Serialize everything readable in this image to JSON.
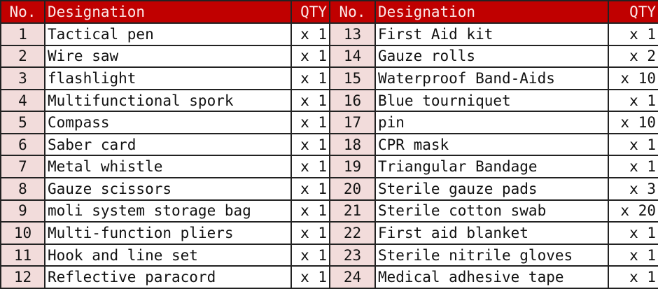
{
  "colors": {
    "header_bg": "#c00000",
    "number_bg": "#f2dcdb"
  },
  "headers": {
    "no": "No.",
    "designation": "Designation",
    "qty": "QTY"
  },
  "left": [
    {
      "no": "1",
      "name": "Tactical pen",
      "qty": "x 1"
    },
    {
      "no": "2",
      "name": "Wire saw",
      "qty": "x 1"
    },
    {
      "no": "3",
      "name": "flashlight",
      "qty": "x 1"
    },
    {
      "no": "4",
      "name": "Multifunctional spork",
      "qty": "x 1"
    },
    {
      "no": "5",
      "name": "Compass",
      "qty": "x 1"
    },
    {
      "no": "6",
      "name": "Saber card",
      "qty": "x 1"
    },
    {
      "no": "7",
      "name": "Metal whistle",
      "qty": "x 1"
    },
    {
      "no": "8",
      "name": "Gauze scissors",
      "qty": "x 1"
    },
    {
      "no": "9",
      "name": "moli system storage bag",
      "qty": "x 1"
    },
    {
      "no": "10",
      "name": "Multi-function pliers",
      "qty": "x 1"
    },
    {
      "no": "11",
      "name": "Hook and line set",
      "qty": "x 1"
    },
    {
      "no": "12",
      "name": "Reflective paracord",
      "qty": "x 1"
    }
  ],
  "right": [
    {
      "no": "13",
      "name": "First Aid kit",
      "qty": "x 1"
    },
    {
      "no": "14",
      "name": "Gauze rolls",
      "qty": "x 2"
    },
    {
      "no": "15",
      "name": "Waterproof Band-Aids",
      "qty": "x 10"
    },
    {
      "no": "16",
      "name": "Blue tourniquet",
      "qty": "x 1"
    },
    {
      "no": "17",
      "name": "pin",
      "qty": "x 10"
    },
    {
      "no": "18",
      "name": "CPR mask",
      "qty": "x 1"
    },
    {
      "no": "19",
      "name": "Triangular Bandage",
      "qty": "x 1"
    },
    {
      "no": "20",
      "name": "Sterile gauze pads",
      "qty": "x 3"
    },
    {
      "no": "21",
      "name": "Sterile cotton swab",
      "qty": "x 20"
    },
    {
      "no": "22",
      "name": "First aid blanket",
      "qty": "x 1"
    },
    {
      "no": "23",
      "name": "Sterile nitrile gloves",
      "qty": "x 1"
    },
    {
      "no": "24",
      "name": "Medical adhesive tape",
      "qty": "x 1"
    }
  ]
}
